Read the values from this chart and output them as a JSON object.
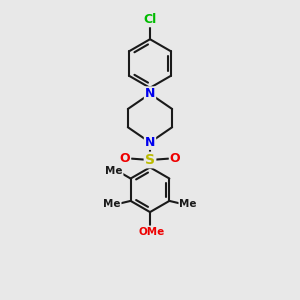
{
  "bg_color": "#e8e8e8",
  "bond_color": "#1a1a1a",
  "bond_width": 1.5,
  "cl_color": "#00bb00",
  "n_color": "#0000ee",
  "o_color": "#ee0000",
  "s_color": "#bbbb00",
  "figsize": [
    3.0,
    3.0
  ],
  "dpi": 100,
  "xlim": [
    0,
    10
  ],
  "ylim": [
    0,
    11
  ]
}
